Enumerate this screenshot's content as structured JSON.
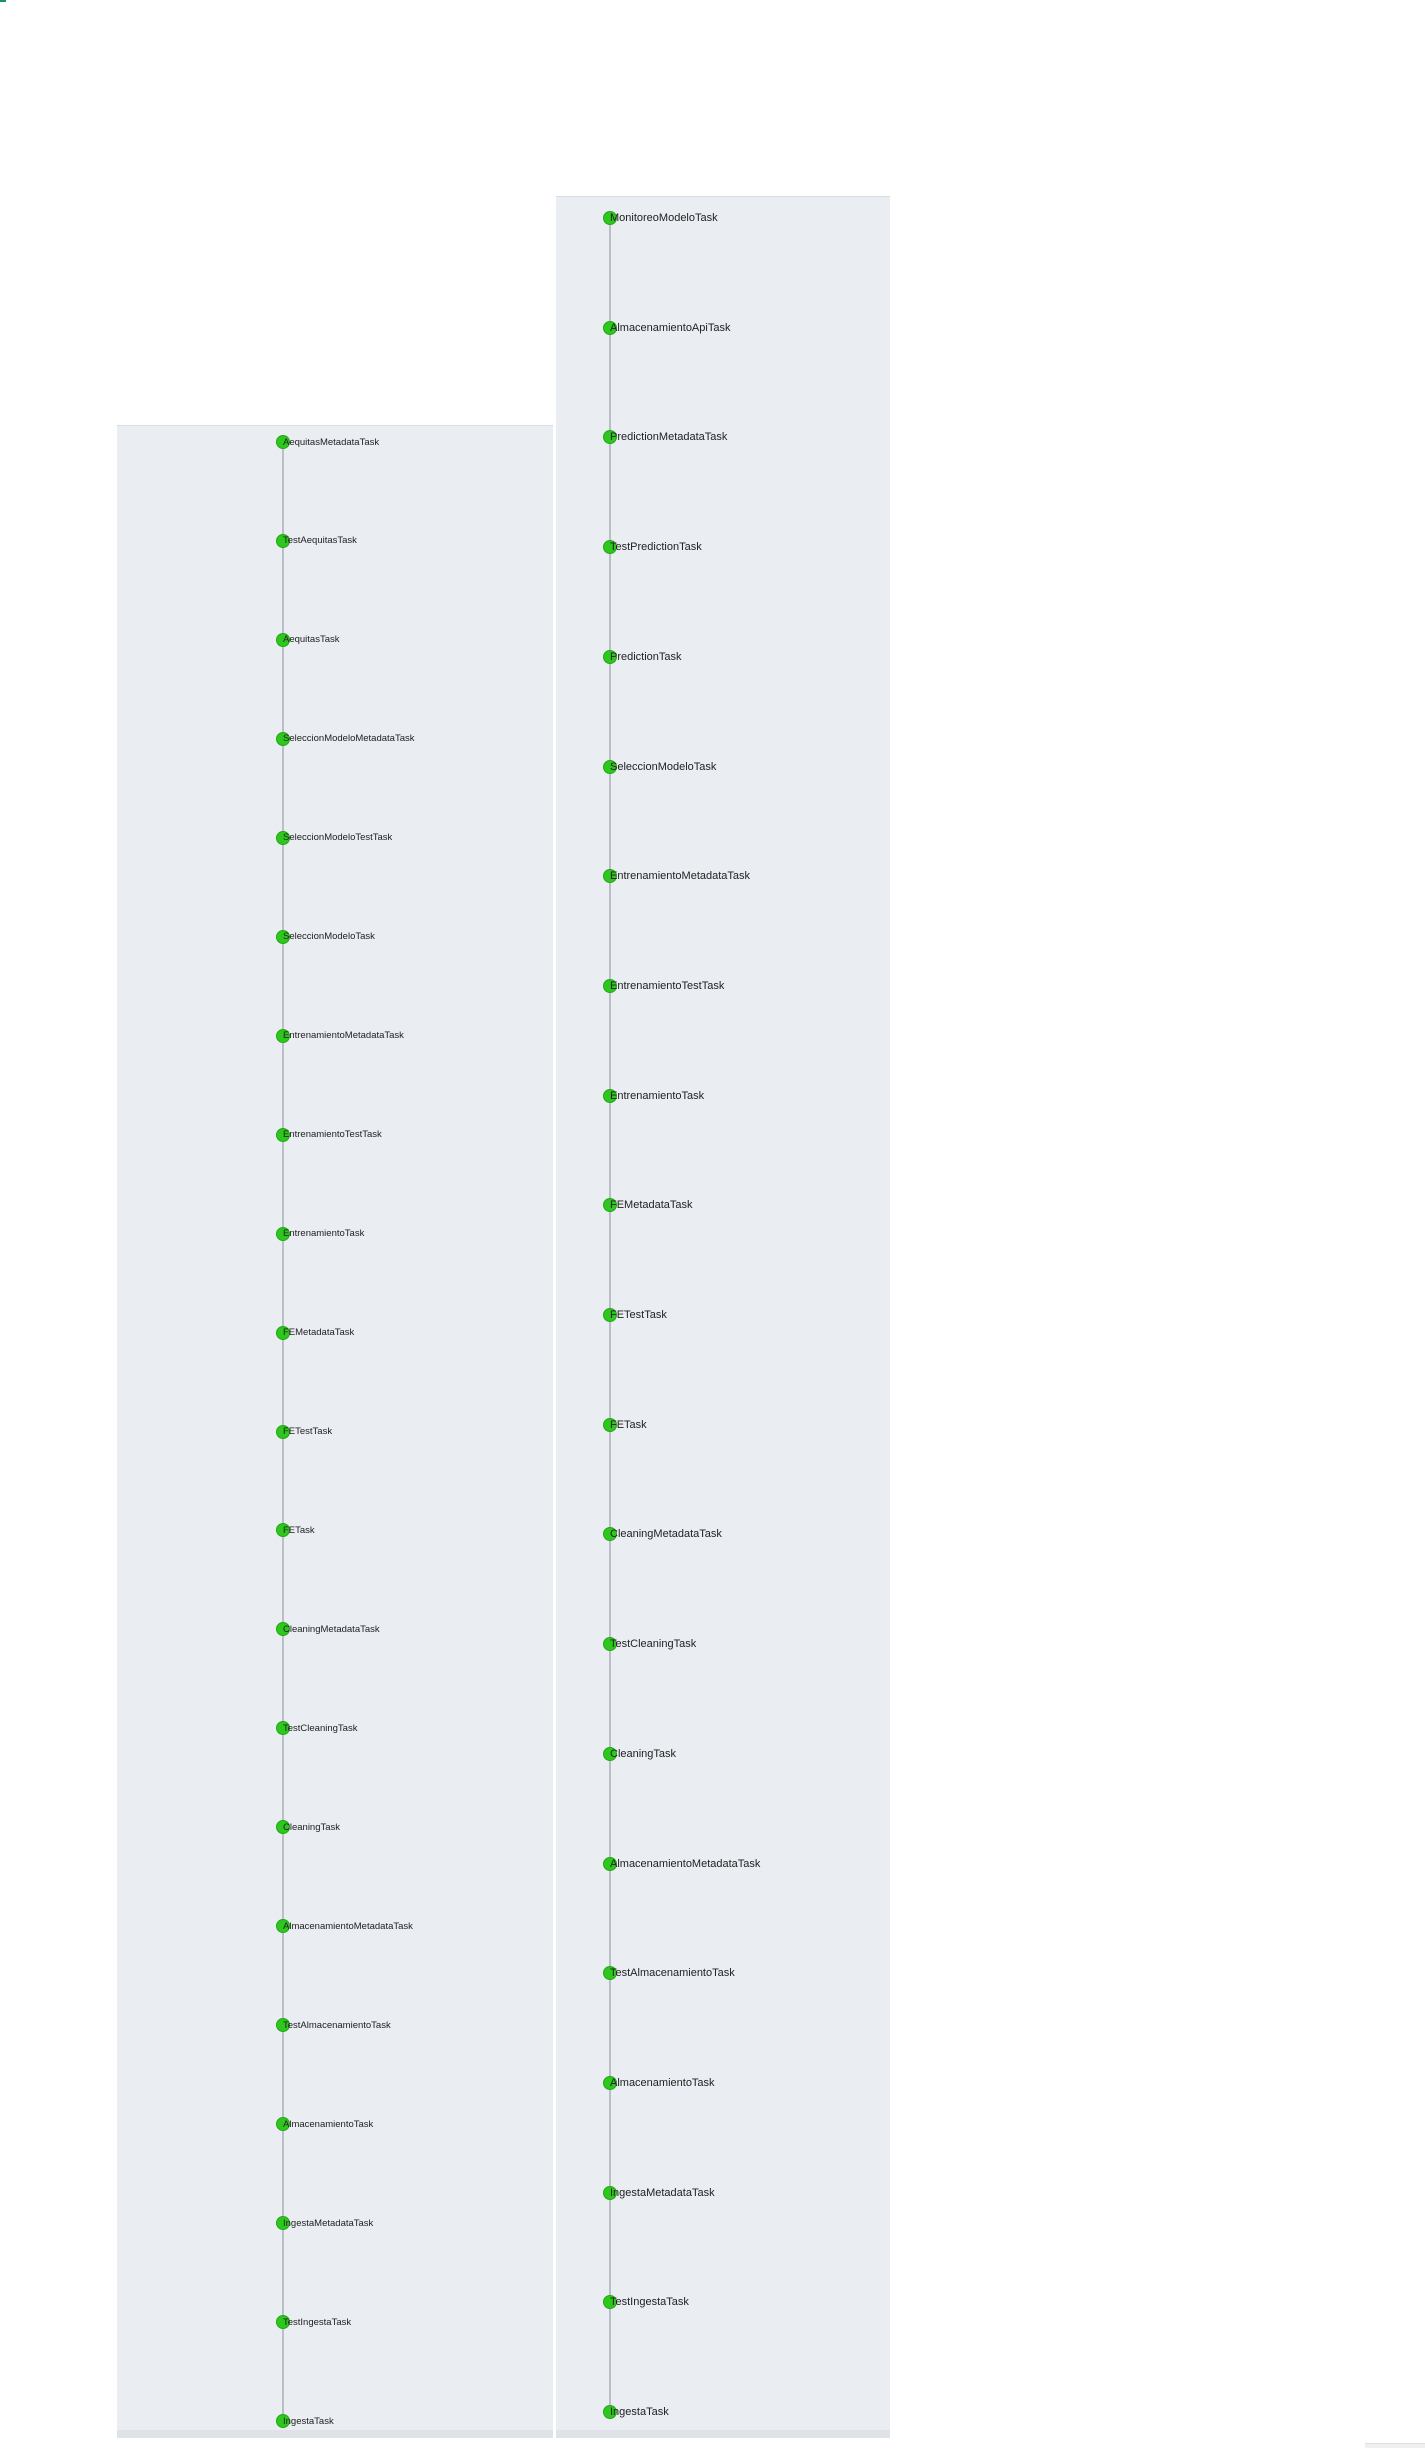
{
  "left_column": {
    "tasks": [
      "AequitasMetadataTask",
      "TestAequitasTask",
      "AequitasTask",
      "SeleccionModeloMetadataTask",
      "SeleccionModeloTestTask",
      "SeleccionModeloTask",
      "EntrenamientoMetadataTask",
      "EntrenamientoTestTask",
      "EntrenamientoTask",
      "FEMetadataTask",
      "FETestTask",
      "FETask",
      "CleaningMetadataTask",
      "TestCleaningTask",
      "CleaningTask",
      "AlmacenamientoMetadataTask",
      "TestAlmacenamientoTask",
      "AlmacenamientoTask",
      "IngestaMetadataTask",
      "TestIngestaTask",
      "IngestaTask"
    ],
    "status": [
      "done",
      "done",
      "done",
      "done",
      "done",
      "done",
      "done",
      "done",
      "done",
      "done",
      "done",
      "done",
      "done",
      "done",
      "done",
      "done",
      "done",
      "done",
      "done",
      "done",
      "done"
    ]
  },
  "right_column": {
    "tasks": [
      "MonitoreoModeloTask",
      "AlmacenamientoApiTask",
      "PredictionMetadataTask",
      "TestPredictionTask",
      "PredictionTask",
      "SeleccionModeloTask",
      "EntrenamientoMetadataTask",
      "EntrenamientoTestTask",
      "EntrenamientoTask",
      "FEMetadataTask",
      "FETestTask",
      "FETask",
      "CleaningMetadataTask",
      "TestCleaningTask",
      "CleaningTask",
      "AlmacenamientoMetadataTask",
      "TestAlmacenamientoTask",
      "AlmacenamientoTask",
      "IngestaMetadataTask",
      "TestIngestaTask",
      "IngestaTask"
    ],
    "status": [
      "done",
      "done",
      "done",
      "done",
      "done",
      "done",
      "done",
      "done",
      "done",
      "done",
      "done",
      "done",
      "done",
      "done",
      "done",
      "done",
      "done",
      "done",
      "done",
      "done",
      "done"
    ]
  },
  "colors": {
    "done": "#2ec71e",
    "panel_bg": "#eaedf2",
    "connector": "#b9bec7"
  }
}
